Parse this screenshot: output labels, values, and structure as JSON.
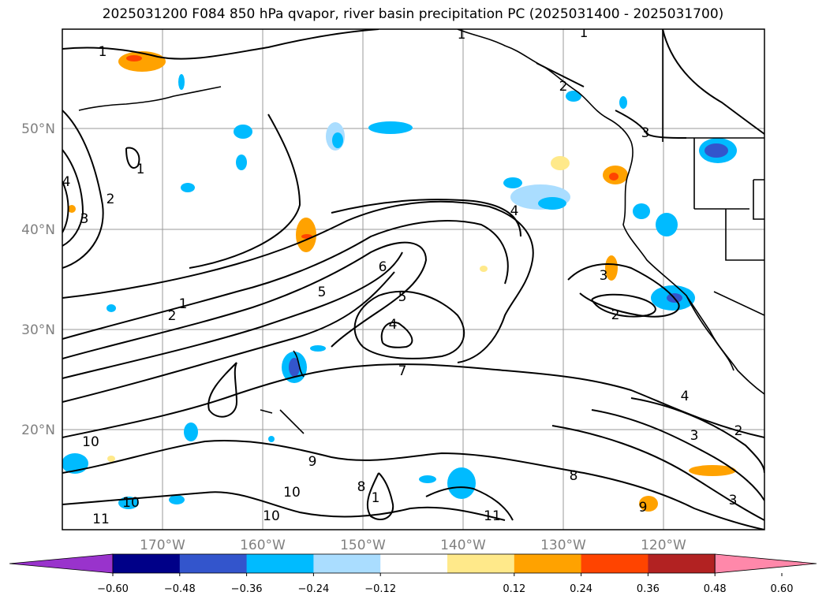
{
  "title": "2025031200 F084 850 hPa qvapor, river basin precipitation PC (2025031400 - 2025031700)",
  "map": {
    "lat_labels": [
      "50°N",
      "40°N",
      "30°N",
      "20°N"
    ],
    "lon_labels": [
      "170°W",
      "160°W",
      "150°W",
      "140°W",
      "130°W",
      "120°W"
    ],
    "gridlines": true,
    "contour_labels": [
      "1",
      "1",
      "1",
      "1",
      "1",
      "2",
      "2",
      "2",
      "3",
      "3",
      "3",
      "4",
      "4",
      "4",
      "5",
      "5",
      "6",
      "7",
      "8",
      "8",
      "9",
      "9",
      "10",
      "10",
      "10",
      "10",
      "11",
      "11",
      "3",
      "4",
      "2",
      "1",
      "2",
      "3"
    ]
  },
  "colorbar": {
    "extend": "both",
    "ticks": [
      "−0.60",
      "−0.48",
      "−0.36",
      "−0.24",
      "−0.12",
      "0.12",
      "0.24",
      "0.36",
      "0.48",
      "0.60"
    ],
    "colors": [
      "#9933cc",
      "#000088",
      "#3355cc",
      "#00bbff",
      "#aaddff",
      "#ffffff",
      "#ffe98a",
      "#ffa200",
      "#ff4400",
      "#b22222",
      "#ff88aa"
    ]
  }
}
